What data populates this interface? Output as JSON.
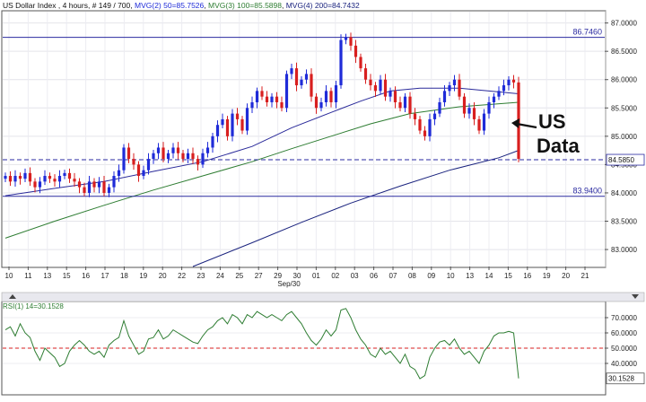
{
  "header": {
    "symbol": "US Dollar Index",
    "interval": "4 hours",
    "bars": "# 149 / 700",
    "mvg2": "MVG(2) 50=85.7526",
    "mvg3": "MVG(3) 100=85.5898",
    "mvg4": "MVG(4) 200=84.7432"
  },
  "colors": {
    "up": "#1f2bd8",
    "down": "#d81f1f",
    "ma50": "#2a2a9a",
    "ma100": "#2e7d32",
    "ma200": "#1a237e",
    "hline": "#2a2aa0",
    "rsi": "#2e7d32",
    "rsi_ref": "#d81f1f",
    "label_bg": "#ffffff"
  },
  "annotation": {
    "line1": "US",
    "line2": "Data"
  },
  "chart_data": [
    {
      "type": "candlestick",
      "title": "US Dollar Index , 4 hours",
      "ylim": [
        82.7,
        87.2
      ],
      "y_ticks": [
        "83.0000",
        "83.5000",
        "84.0000",
        "84.5000",
        "85.0000",
        "85.5000",
        "86.0000",
        "86.5000",
        "87.0000"
      ],
      "x_ticks": [
        "10",
        "11",
        "13",
        "15",
        "16",
        "17",
        "18",
        "19",
        "20",
        "22",
        "23",
        "24",
        "25",
        "27",
        "29",
        "30",
        "01",
        "02",
        "03",
        "06",
        "07",
        "08",
        "09",
        "10",
        "13",
        "14",
        "15",
        "16",
        "19",
        "20",
        "21"
      ],
      "x_sublabel": "Sep/30",
      "horizontal_lines": [
        {
          "value": 86.746,
          "label": "86.7460",
          "style": "solid"
        },
        {
          "value": 84.585,
          "label": "84.5850",
          "style": "dashed"
        },
        {
          "value": 83.94,
          "label": "83.9400",
          "style": "solid"
        }
      ],
      "closes": [
        84.3,
        84.2,
        84.3,
        84.25,
        84.35,
        84.2,
        84.1,
        84.2,
        84.3,
        84.25,
        84.2,
        84.3,
        84.35,
        84.25,
        84.2,
        84.1,
        84.0,
        84.2,
        84.1,
        84.2,
        84.0,
        84.1,
        84.3,
        84.4,
        84.8,
        84.6,
        84.5,
        84.3,
        84.4,
        84.6,
        84.7,
        84.8,
        84.6,
        84.7,
        84.8,
        84.7,
        84.6,
        84.7,
        84.6,
        84.5,
        84.7,
        84.8,
        85.0,
        85.2,
        85.3,
        85.0,
        85.4,
        85.3,
        85.1,
        85.5,
        85.6,
        85.8,
        85.7,
        85.6,
        85.7,
        85.6,
        85.5,
        86.1,
        86.2,
        85.9,
        86.0,
        86.1,
        85.7,
        85.5,
        85.6,
        85.8,
        85.6,
        85.9,
        86.7,
        86.75,
        86.6,
        86.4,
        86.2,
        86.0,
        85.9,
        85.8,
        86.0,
        85.7,
        85.8,
        85.6,
        85.5,
        85.7,
        85.4,
        85.3,
        85.1,
        85.0,
        85.3,
        85.4,
        85.6,
        85.8,
        85.9,
        86.0,
        85.7,
        85.4,
        85.5,
        85.3,
        85.1,
        85.4,
        85.6,
        85.7,
        85.8,
        85.9,
        86.0,
        85.95,
        84.6
      ],
      "series": [
        {
          "name": "MVG(2) 50",
          "values": [
            [
              0,
              83.95
            ],
            [
              10,
              84.08
            ],
            [
              20,
              84.2
            ],
            [
              30,
              84.38
            ],
            [
              40,
              84.55
            ],
            [
              50,
              84.82
            ],
            [
              58,
              85.15
            ],
            [
              66,
              85.42
            ],
            [
              72,
              85.62
            ],
            [
              78,
              85.8
            ],
            [
              84,
              85.85
            ],
            [
              92,
              85.85
            ],
            [
              98,
              85.8
            ],
            [
              104,
              85.75
            ]
          ]
        },
        {
          "name": "MVG(3) 100",
          "values": [
            [
              0,
              83.2
            ],
            [
              10,
              83.5
            ],
            [
              20,
              83.78
            ],
            [
              30,
              84.05
            ],
            [
              40,
              84.3
            ],
            [
              50,
              84.55
            ],
            [
              58,
              84.78
            ],
            [
              66,
              85.0
            ],
            [
              74,
              85.22
            ],
            [
              82,
              85.4
            ],
            [
              92,
              85.52
            ],
            [
              104,
              85.6
            ]
          ]
        },
        {
          "name": "MVG(4) 200",
          "values": [
            [
              38,
              82.7
            ],
            [
              50,
              83.12
            ],
            [
              60,
              83.48
            ],
            [
              70,
              83.82
            ],
            [
              80,
              84.12
            ],
            [
              90,
              84.4
            ],
            [
              100,
              84.62
            ],
            [
              104,
              84.75
            ]
          ]
        }
      ]
    },
    {
      "type": "line",
      "title": "RSI(1) 14=30.1528",
      "ylim": [
        20,
        80
      ],
      "y_ticks": [
        "40.0000",
        "50.0000",
        "60.0000",
        "70.0000"
      ],
      "last_value": "30.1528",
      "reference_line": 50,
      "values": [
        62,
        64,
        58,
        66,
        60,
        57,
        48,
        42,
        50,
        47,
        44,
        38,
        40,
        48,
        52,
        55,
        52,
        48,
        46,
        48,
        44,
        52,
        55,
        57,
        68,
        58,
        52,
        46,
        48,
        56,
        57,
        62,
        56,
        58,
        62,
        60,
        58,
        56,
        54,
        53,
        58,
        62,
        64,
        68,
        70,
        66,
        72,
        70,
        66,
        72,
        70,
        74,
        72,
        70,
        72,
        70,
        68,
        72,
        74,
        70,
        66,
        60,
        55,
        52,
        56,
        62,
        58,
        62,
        75,
        76,
        70,
        62,
        56,
        52,
        46,
        44,
        50,
        46,
        48,
        44,
        40,
        46,
        38,
        36,
        30,
        32,
        44,
        50,
        54,
        55,
        52,
        56,
        50,
        46,
        48,
        44,
        40,
        48,
        52,
        58,
        60,
        60,
        61,
        60,
        30.15
      ]
    }
  ]
}
